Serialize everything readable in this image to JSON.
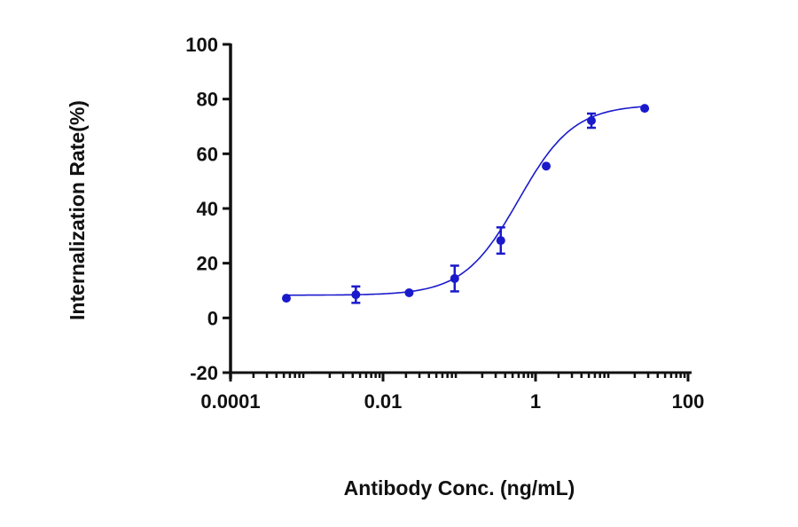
{
  "chart_data": {
    "type": "scatter",
    "title": "",
    "xlabel": "Antibody Conc. (ng/mL)",
    "ylabel": "Internalization Rate(%)",
    "xscale": "log",
    "xlim": [
      0.0001,
      150
    ],
    "ylim": [
      -20,
      100
    ],
    "x_ticks": [
      0.0001,
      0.01,
      1,
      100
    ],
    "x_tick_labels": [
      "0.0001",
      "0.01",
      "1",
      "100"
    ],
    "y_ticks": [
      -20,
      0,
      20,
      40,
      60,
      80,
      100
    ],
    "y_tick_labels": [
      "-20",
      "0",
      "20",
      "40",
      "60",
      "80",
      "100"
    ],
    "grid": false,
    "legend": null,
    "series": [
      {
        "name": "Internalization",
        "color": "#1a1acc",
        "marker": "circle",
        "x": [
          0.00054,
          0.0044,
          0.022,
          0.087,
          0.35,
          1.38,
          5.4,
          27
        ],
        "y": [
          7.2,
          8.5,
          9.2,
          14.4,
          28.3,
          55.5,
          72.1,
          76.6
        ],
        "error": [
          0,
          3.0,
          0,
          4.7,
          4.8,
          0,
          2.6,
          0
        ]
      }
    ],
    "fit": {
      "type": "4PL sigmoidal",
      "bottom": 8.3,
      "top": 78,
      "ec50": 0.6,
      "hill": 1.2
    }
  },
  "colors": {
    "axis": "#111111",
    "series": "#1a1acc"
  }
}
